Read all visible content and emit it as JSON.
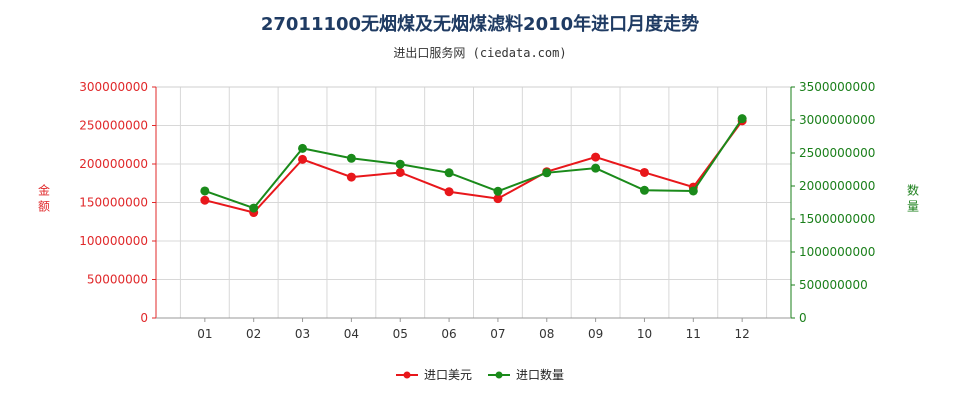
{
  "title": "27011100无烟煤及无烟煤滤料2010年进口月度走势",
  "subtitle": "进出口服务网 (ciedata.com)",
  "colors": {
    "import_value": "#e8171b",
    "import_qty": "#1a8a1a"
  },
  "chart_data": {
    "type": "line",
    "categories": [
      "01",
      "02",
      "03",
      "04",
      "05",
      "06",
      "07",
      "08",
      "09",
      "10",
      "11",
      "12"
    ],
    "y_left": {
      "label": "金额",
      "ylim": [
        0,
        300000000
      ],
      "ticks": [
        "0",
        "50000000",
        "100000000",
        "150000000",
        "200000000",
        "250000000",
        "300000000"
      ]
    },
    "y_right": {
      "label": "数量",
      "ylim": [
        0,
        3500000000
      ],
      "ticks": [
        "0",
        "500000000",
        "1000000000",
        "1500000000",
        "2000000000",
        "2500000000",
        "3000000000",
        "3500000000"
      ]
    },
    "series": [
      {
        "name": "进口美元",
        "axis": "left",
        "values": [
          153000000,
          137000000,
          206000000,
          183000000,
          189000000,
          164000000,
          155000000,
          190000000,
          209000000,
          189000000,
          170000000,
          256000000
        ]
      },
      {
        "name": "进口数量",
        "axis": "right",
        "values": [
          1925000000,
          1665000000,
          2570000000,
          2420000000,
          2330000000,
          2200000000,
          1920000000,
          2200000000,
          2270000000,
          1935000000,
          1925000000,
          3020000000
        ]
      }
    ],
    "grid": true,
    "legend": "bottom"
  }
}
